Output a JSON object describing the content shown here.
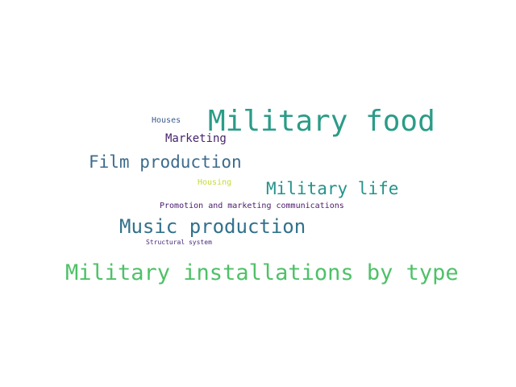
{
  "words": [
    {
      "id": "w-military-food",
      "text": "Military food",
      "color": "#2a9c87"
    },
    {
      "id": "w-houses",
      "text": "Houses",
      "color": "#3b5a8c"
    },
    {
      "id": "w-marketing",
      "text": "Marketing",
      "color": "#46246e"
    },
    {
      "id": "w-film-production",
      "text": "Film production",
      "color": "#3d6b8c"
    },
    {
      "id": "w-housing",
      "text": "Housing",
      "color": "#c8d93a"
    },
    {
      "id": "w-military-life",
      "text": "Military life",
      "color": "#26938a"
    },
    {
      "id": "w-promotion",
      "text": "Promotion and marketing communications",
      "color": "#4b1a6b"
    },
    {
      "id": "w-music-production",
      "text": "Music production",
      "color": "#32718c"
    },
    {
      "id": "w-structural-system",
      "text": "Structural system",
      "color": "#472a7a"
    },
    {
      "id": "w-military-install",
      "text": "Military installations by type",
      "color": "#4ec168"
    }
  ]
}
